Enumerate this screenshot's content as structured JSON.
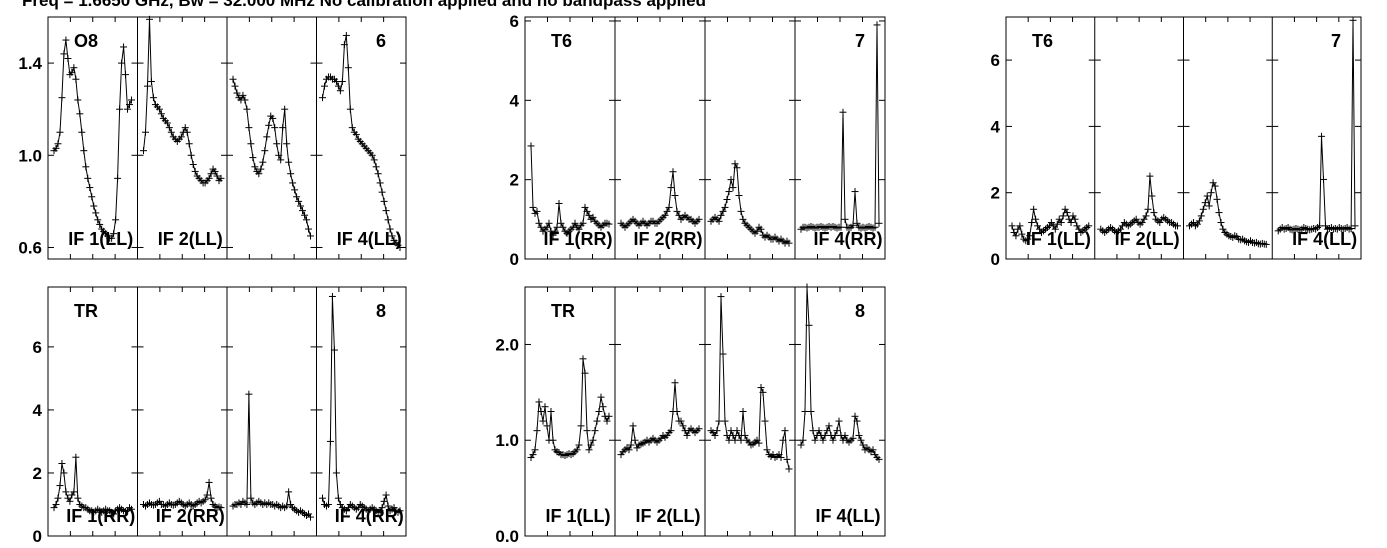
{
  "header": {
    "title": "Freq = 1.6650 GHz, Bw = 32.000 MHz No calibration applied and no bandpass applied"
  },
  "colors": {
    "line": "#000000",
    "background": "#ffffff"
  },
  "chart_data": [
    {
      "type": "line",
      "baseline": "O8",
      "baseline_right": "6",
      "if_labels": [
        "IF 1(LL)",
        "IF 2(LL)",
        "",
        "IF 4(LL)"
      ],
      "ylim": [
        0.55,
        1.6
      ],
      "yticks": [
        "0.6",
        "1.0",
        "1.4"
      ],
      "ytick_values": [
        0.6,
        1.0,
        1.4
      ],
      "series": [
        {
          "values": [
            1.02,
            1.03,
            1.05,
            1.1,
            1.25,
            1.44,
            1.5,
            1.42,
            1.35,
            1.36,
            1.38,
            1.33,
            1.24,
            1.18,
            1.1,
            1.02,
            0.95,
            0.9,
            0.86,
            0.82,
            0.78,
            0.75,
            0.72,
            0.7,
            0.68,
            0.67,
            0.66,
            0.65,
            0.64,
            0.64,
            0.66,
            0.72,
            0.9,
            1.2,
            1.4,
            1.47,
            1.35,
            1.2,
            1.22,
            1.24
          ]
        },
        {
          "values": [
            1.02,
            1.1,
            1.3,
            1.59,
            1.32,
            1.25,
            1.22,
            1.21,
            1.2,
            1.18,
            1.16,
            1.15,
            1.14,
            1.12,
            1.1,
            1.08,
            1.07,
            1.06,
            1.07,
            1.08,
            1.1,
            1.12,
            1.1,
            1.05,
            1.0,
            0.96,
            0.93,
            0.91,
            0.9,
            0.89,
            0.88,
            0.88,
            0.89,
            0.9,
            0.92,
            0.94,
            0.93,
            0.91,
            0.89,
            0.9
          ]
        },
        {
          "values": [
            1.33,
            1.3,
            1.27,
            1.25,
            1.24,
            1.26,
            1.24,
            1.2,
            1.12,
            1.05,
            0.99,
            0.95,
            0.93,
            0.92,
            0.94,
            0.97,
            1.02,
            1.08,
            1.13,
            1.17,
            1.16,
            1.12,
            1.05,
            1.0,
            0.98,
            1.12,
            1.2,
            1.05,
            0.97,
            0.92,
            0.88,
            0.85,
            0.82,
            0.8,
            0.78,
            0.76,
            0.74,
            0.72,
            0.68,
            0.65
          ]
        },
        {
          "values": [
            1.25,
            1.3,
            1.33,
            1.34,
            1.34,
            1.33,
            1.33,
            1.32,
            1.3,
            1.28,
            1.32,
            1.48,
            1.52,
            1.38,
            1.2,
            1.12,
            1.1,
            1.09,
            1.07,
            1.06,
            1.05,
            1.04,
            1.03,
            1.02,
            1.01,
            1.0,
            0.98,
            0.95,
            0.92,
            0.88,
            0.84,
            0.8,
            0.76,
            0.72,
            0.68,
            0.65,
            0.63,
            0.62,
            0.61,
            0.6
          ]
        }
      ]
    },
    {
      "type": "line",
      "baseline": "T6",
      "baseline_right": "7",
      "if_labels": [
        "IF 1(RR)",
        "IF 2(RR)",
        "",
        "IF 4(RR)"
      ],
      "ylim": [
        0,
        6.1
      ],
      "yticks": [
        "0",
        "2",
        "4",
        "6"
      ],
      "ytick_values": [
        0,
        2,
        4,
        6
      ],
      "series": [
        {
          "values": [
            2.85,
            1.3,
            1.15,
            1.2,
            0.9,
            0.8,
            0.7,
            0.75,
            0.8,
            0.9,
            0.7,
            0.6,
            0.7,
            0.8,
            1.4,
            0.9,
            0.8,
            0.7,
            0.65,
            0.7,
            0.75,
            0.8,
            0.9,
            0.8,
            0.75,
            0.85,
            0.9,
            1.3,
            1.2,
            1.1,
            1.0,
            1.05,
            0.95,
            0.9,
            0.85,
            0.8,
            0.85,
            0.9,
            0.9,
            0.88
          ]
        },
        {
          "values": [
            0.9,
            0.85,
            0.8,
            0.85,
            0.9,
            0.95,
            1.0,
            0.95,
            0.9,
            0.85,
            0.9,
            0.95,
            0.9,
            0.85,
            0.9,
            0.95,
            0.95,
            0.9,
            0.9,
            0.95,
            1.0,
            1.05,
            1.1,
            1.2,
            1.3,
            1.8,
            2.2,
            1.6,
            1.2,
            1.1,
            1.0,
            1.05,
            1.1,
            1.05,
            1.0,
            1.0,
            0.95,
            0.9,
            0.95,
            1.0
          ]
        },
        {
          "values": [
            0.95,
            1.0,
            1.05,
            1.0,
            0.95,
            1.1,
            1.2,
            1.3,
            1.5,
            1.7,
            2.0,
            1.8,
            2.4,
            2.3,
            1.6,
            1.2,
            1.0,
            0.9,
            0.85,
            0.8,
            0.75,
            0.7,
            0.65,
            0.7,
            0.8,
            0.75,
            0.6,
            0.55,
            0.6,
            0.55,
            0.5,
            0.5,
            0.55,
            0.5,
            0.45,
            0.5,
            0.45,
            0.4,
            0.45,
            0.4
          ]
        },
        {
          "values": [
            0.75,
            0.8,
            0.8,
            0.78,
            0.8,
            0.82,
            0.8,
            0.78,
            0.8,
            0.8,
            0.82,
            0.8,
            0.78,
            0.8,
            0.82,
            0.8,
            0.82,
            0.8,
            0.78,
            0.8,
            0.8,
            3.7,
            1.0,
            0.8,
            0.78,
            0.8,
            0.85,
            1.7,
            0.9,
            0.8,
            0.78,
            0.8,
            0.78,
            0.8,
            0.82,
            0.8,
            0.78,
            0.8,
            5.9,
            0.9
          ]
        }
      ]
    },
    {
      "type": "line",
      "baseline": "T6",
      "baseline_right": "7",
      "if_labels": [
        "IF 1(LL)",
        "IF 2(LL)",
        "",
        "IF 4(LL)"
      ],
      "ylim": [
        0,
        7.3
      ],
      "yticks": [
        "0",
        "2",
        "4",
        "6"
      ],
      "ytick_values": [
        0,
        2,
        4,
        6
      ],
      "series": [
        {
          "values": [
            1.0,
            0.8,
            0.7,
            0.9,
            1.0,
            0.75,
            0.6,
            0.55,
            0.6,
            0.7,
            1.1,
            1.5,
            1.2,
            1.0,
            0.9,
            0.8,
            0.85,
            0.9,
            0.95,
            1.0,
            1.1,
            1.0,
            0.9,
            1.05,
            1.2,
            1.1,
            1.3,
            1.5,
            1.4,
            1.2,
            1.1,
            1.3,
            1.2,
            1.0,
            0.9,
            0.8,
            0.85,
            0.9,
            0.95,
            1.0
          ]
        },
        {
          "values": [
            0.9,
            0.85,
            0.8,
            0.85,
            0.9,
            0.95,
            0.9,
            0.85,
            0.8,
            0.85,
            0.9,
            1.0,
            1.1,
            1.05,
            1.0,
            1.05,
            1.1,
            1.15,
            1.2,
            1.1,
            1.05,
            1.1,
            1.2,
            1.3,
            1.5,
            2.5,
            1.9,
            1.4,
            1.2,
            1.15,
            1.1,
            1.2,
            1.25,
            1.2,
            1.15,
            1.1,
            1.1,
            1.05,
            1.0,
            1.0
          ]
        },
        {
          "values": [
            1.0,
            1.05,
            1.1,
            1.0,
            1.05,
            1.15,
            1.3,
            1.5,
            1.7,
            1.9,
            1.6,
            2.0,
            2.3,
            2.2,
            1.8,
            1.4,
            1.1,
            0.9,
            0.8,
            0.75,
            0.7,
            0.68,
            0.65,
            0.7,
            0.68,
            0.6,
            0.58,
            0.6,
            0.55,
            0.52,
            0.5,
            0.55,
            0.5,
            0.48,
            0.5,
            0.46,
            0.45,
            0.47,
            0.45,
            0.44
          ]
        },
        {
          "values": [
            0.85,
            0.9,
            0.95,
            0.9,
            0.92,
            0.95,
            0.9,
            0.88,
            0.9,
            0.92,
            0.9,
            0.88,
            0.9,
            0.95,
            0.92,
            0.9,
            0.88,
            0.9,
            0.92,
            0.9,
            0.95,
            1.0,
            3.7,
            2.4,
            1.0,
            0.9,
            0.92,
            0.95,
            0.9,
            0.92,
            0.9,
            0.95,
            0.92,
            0.9,
            0.92,
            0.95,
            0.9,
            0.92,
            7.2,
            1.0
          ]
        }
      ]
    },
    {
      "type": "line",
      "baseline": "TR",
      "baseline_right": "8",
      "if_labels": [
        "IF 1(RR)",
        "IF 2(RR)",
        "",
        "IF 4(RR)"
      ],
      "ylim": [
        0,
        7.9
      ],
      "yticks": [
        "0",
        "2",
        "4",
        "6"
      ],
      "ytick_values": [
        0,
        2,
        4,
        6
      ],
      "series": [
        {
          "values": [
            0.9,
            1.0,
            1.2,
            1.6,
            2.3,
            2.0,
            1.4,
            1.2,
            1.1,
            1.3,
            1.4,
            2.5,
            1.2,
            1.0,
            0.95,
            0.9,
            0.9,
            0.85,
            0.8,
            0.8,
            0.75,
            0.8,
            0.85,
            0.8,
            0.75,
            0.8,
            0.85,
            0.8,
            0.8,
            0.75,
            0.7,
            0.8,
            0.85,
            0.9,
            0.85,
            0.8,
            0.78,
            0.8,
            0.9,
            0.85
          ]
        },
        {
          "values": [
            1.0,
            0.95,
            1.0,
            1.05,
            1.0,
            0.98,
            1.0,
            1.05,
            1.1,
            1.0,
            1.0,
            0.95,
            1.0,
            1.05,
            1.0,
            0.98,
            1.0,
            1.05,
            1.1,
            1.05,
            1.0,
            0.95,
            1.0,
            1.05,
            1.0,
            0.95,
            1.0,
            1.05,
            1.1,
            1.05,
            1.1,
            1.15,
            1.3,
            1.7,
            1.2,
            1.0,
            0.95,
            0.9,
            0.92,
            0.9
          ]
        },
        {
          "values": [
            0.95,
            1.0,
            1.0,
            1.05,
            1.0,
            1.1,
            1.05,
            1.0,
            4.5,
            1.2,
            1.05,
            1.0,
            1.05,
            1.1,
            1.05,
            1.0,
            1.05,
            1.0,
            1.05,
            1.0,
            1.0,
            0.95,
            1.0,
            0.95,
            0.9,
            0.95,
            0.9,
            0.95,
            1.4,
            1.0,
            0.9,
            0.85,
            0.8,
            0.75,
            0.8,
            0.75,
            0.7,
            0.65,
            0.7,
            0.6
          ]
        },
        {
          "values": [
            1.2,
            1.0,
            0.95,
            1.0,
            3.0,
            7.6,
            5.9,
            2.0,
            1.2,
            1.0,
            0.9,
            0.85,
            0.8,
            0.9,
            1.0,
            0.95,
            0.9,
            0.85,
            0.9,
            1.0,
            0.95,
            0.9,
            0.85,
            0.8,
            0.85,
            0.9,
            0.85,
            0.8,
            0.75,
            0.8,
            0.9,
            1.1,
            1.3,
            0.95,
            0.8,
            0.85,
            0.9,
            0.8,
            0.75,
            0.8
          ]
        }
      ]
    },
    {
      "type": "line",
      "baseline": "TR",
      "baseline_right": "8",
      "if_labels": [
        "IF 1(LL)",
        "IF 2(LL)",
        "",
        "IF 4(LL)"
      ],
      "ylim": [
        0,
        2.6
      ],
      "yticks": [
        "0.0",
        "1.0",
        "2.0"
      ],
      "ytick_values": [
        0,
        1,
        2
      ],
      "series": [
        {
          "values": [
            0.82,
            0.85,
            0.9,
            1.1,
            1.4,
            1.3,
            1.2,
            1.35,
            1.15,
            1.0,
            1.3,
            1.0,
            0.9,
            0.88,
            0.87,
            0.85,
            0.85,
            0.84,
            0.85,
            0.86,
            0.85,
            0.86,
            0.88,
            0.9,
            0.95,
            1.15,
            1.85,
            1.7,
            1.1,
            0.9,
            0.95,
            1.0,
            1.1,
            1.2,
            1.3,
            1.45,
            1.35,
            1.25,
            1.2,
            1.25
          ]
        },
        {
          "values": [
            0.85,
            0.88,
            0.9,
            0.92,
            0.9,
            0.95,
            1.15,
            1.0,
            0.92,
            0.95,
            0.96,
            0.97,
            0.98,
            1.0,
            0.98,
            1.0,
            1.02,
            1.0,
            0.98,
            1.0,
            1.02,
            1.05,
            1.03,
            1.05,
            1.08,
            1.1,
            1.3,
            1.6,
            1.3,
            1.2,
            1.2,
            1.15,
            1.1,
            1.05,
            1.1,
            1.12,
            1.1,
            1.08,
            1.1,
            1.12
          ]
        },
        {
          "values": [
            1.1,
            1.08,
            1.05,
            1.1,
            1.2,
            2.5,
            1.9,
            1.2,
            1.05,
            1.0,
            1.1,
            1.05,
            1.0,
            1.1,
            1.05,
            1.0,
            1.3,
            1.05,
            1.0,
            0.98,
            0.95,
            0.96,
            0.98,
            1.0,
            0.97,
            1.55,
            1.5,
            1.2,
            0.9,
            0.85,
            0.83,
            0.85,
            0.82,
            0.83,
            0.85,
            0.82,
            1.0,
            1.1,
            0.8,
            0.7
          ]
        },
        {
          "values": [
            0.95,
            1.0,
            1.3,
            2.6,
            2.2,
            1.3,
            1.1,
            1.0,
            1.05,
            1.1,
            1.05,
            1.0,
            1.05,
            1.1,
            1.15,
            1.05,
            1.0,
            1.05,
            1.1,
            1.2,
            1.05,
            1.0,
            1.05,
            1.0,
            0.98,
            1.0,
            1.02,
            1.25,
            1.2,
            1.05,
            1.0,
            0.95,
            0.9,
            0.92,
            0.9,
            0.88,
            0.9,
            0.85,
            0.82,
            0.8
          ]
        }
      ]
    }
  ]
}
